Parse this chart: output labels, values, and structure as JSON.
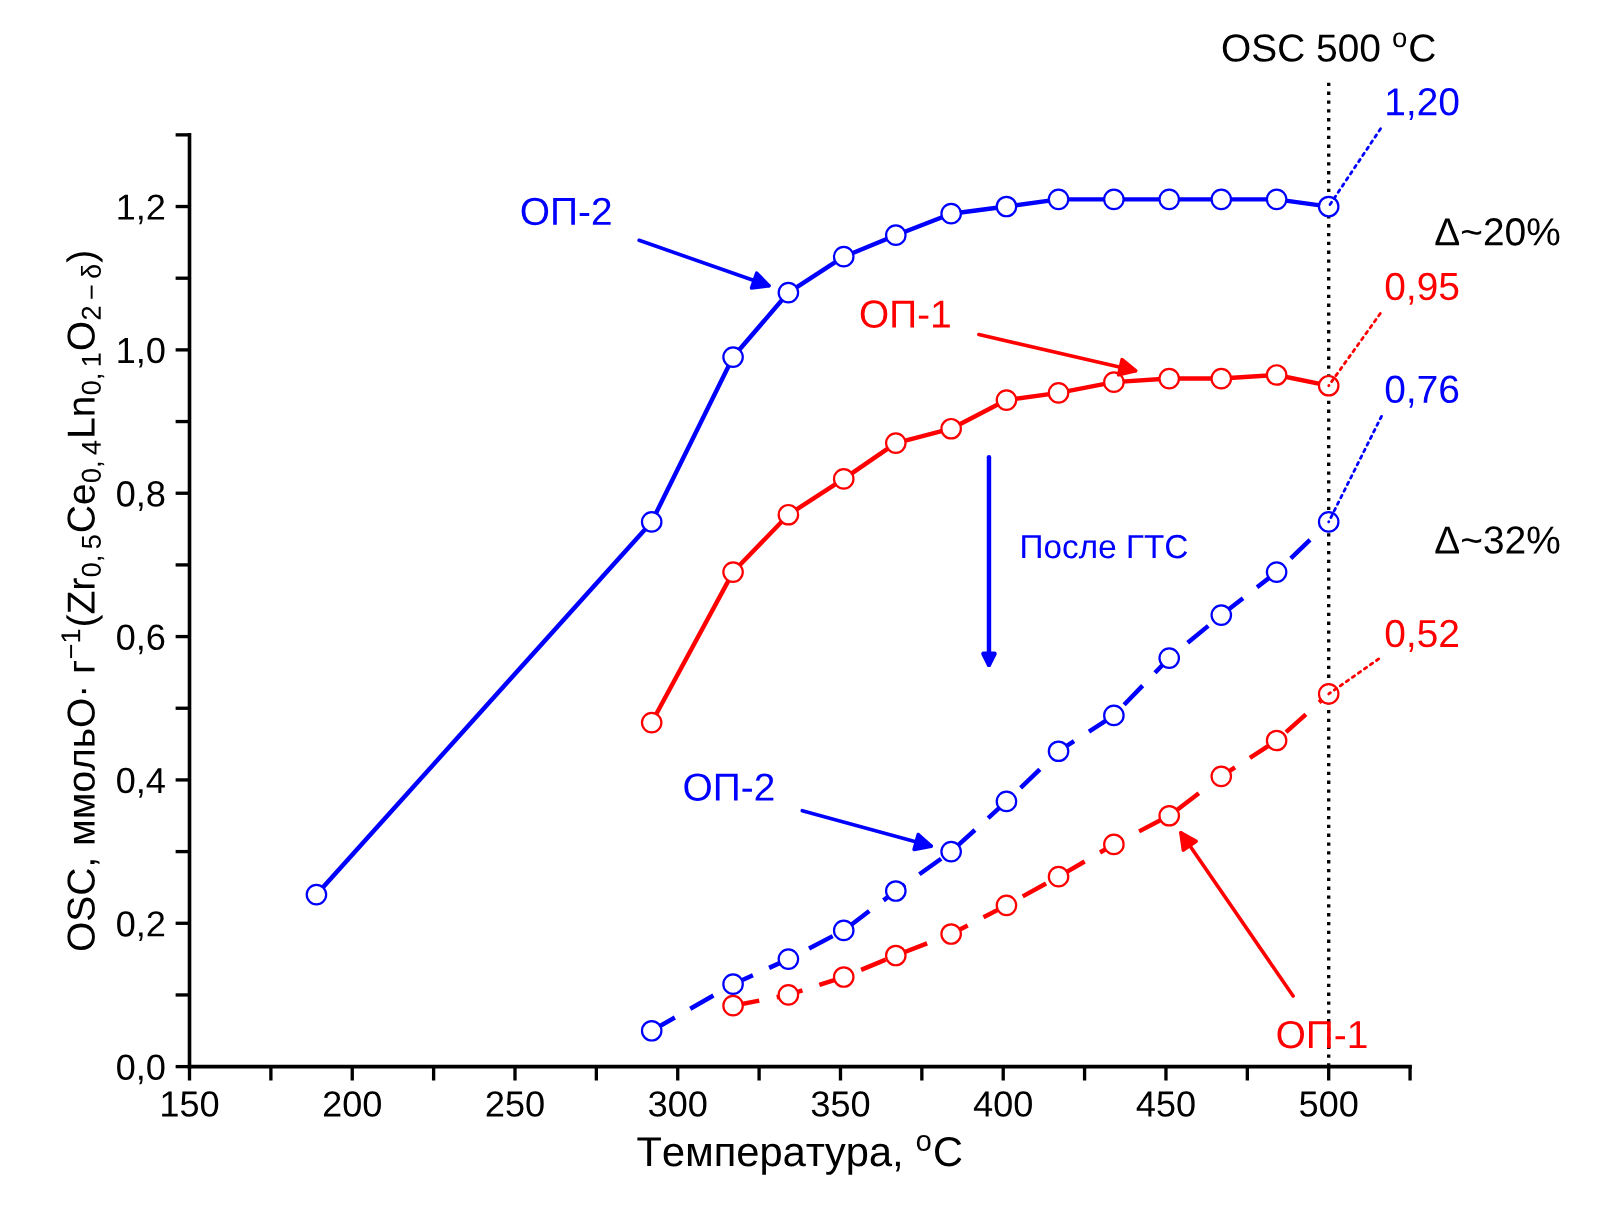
{
  "chart_data": {
    "type": "line",
    "xlabel": "Температура, $^{o}$C",
    "ylabel": "OSC, ммольO· г$^{−1}$(Zr$_{0,5}$Ce$_{0,4}$Ln$_{0,1}$O$_{2−δ}$)",
    "xlim": [
      150,
      525
    ],
    "ylim": [
      0,
      1.3
    ],
    "xticks": [
      150,
      {
        "value": 175,
        "label": null
      },
      200,
      {
        "value": 225,
        "label": null
      },
      250,
      {
        "value": 275,
        "label": null
      },
      300,
      {
        "value": 325,
        "label": null
      },
      350,
      {
        "value": 375,
        "label": null
      },
      400,
      {
        "value": 425,
        "label": null
      },
      450,
      {
        "value": 475,
        "label": null
      },
      500,
      {
        "value": 525,
        "label": null
      }
    ],
    "yticks": [
      {
        "value": 0,
        "label": "0,0"
      },
      {
        "value": 0.1,
        "label": null
      },
      {
        "value": 0.2,
        "label": "0,2"
      },
      {
        "value": 0.3,
        "label": null
      },
      {
        "value": 0.4,
        "label": "0,4"
      },
      {
        "value": 0.5,
        "label": null
      },
      {
        "value": 0.6,
        "label": "0,6"
      },
      {
        "value": 0.7,
        "label": null
      },
      {
        "value": 0.8,
        "label": "0,8"
      },
      {
        "value": 0.9,
        "label": null
      },
      {
        "value": 1.0,
        "label": "1,0"
      },
      {
        "value": 1.1,
        "label": null
      },
      {
        "value": 1.2,
        "label": "1,2"
      },
      {
        "value": 1.3,
        "label": null
      }
    ],
    "grid": false,
    "legend": false,
    "marker": "circle",
    "series": [
      {
        "name": "ОП-2",
        "color": "#0000ff",
        "line_style": "solid",
        "x": [
          189,
          292,
          317,
          334,
          351,
          367,
          384,
          401,
          417,
          434,
          451,
          467,
          484,
          500
        ],
        "values": [
          0.24,
          0.76,
          0.99,
          1.08,
          1.13,
          1.16,
          1.19,
          1.2,
          1.21,
          1.21,
          1.21,
          1.21,
          1.21,
          1.2
        ],
        "value_labels": [
          null,
          null,
          null,
          null,
          null,
          null,
          null,
          null,
          null,
          null,
          null,
          null,
          null,
          "1,20"
        ]
      },
      {
        "name": "ОП-1",
        "color": "#ff0000",
        "line_style": "solid",
        "x": [
          292,
          317,
          334,
          351,
          367,
          384,
          401,
          417,
          434,
          451,
          467,
          484,
          500
        ],
        "values": [
          0.48,
          0.69,
          0.77,
          0.82,
          0.87,
          0.89,
          0.93,
          0.94,
          0.955,
          0.96,
          0.96,
          0.965,
          0.95
        ],
        "value_labels": [
          null,
          null,
          null,
          null,
          null,
          null,
          null,
          null,
          null,
          null,
          null,
          null,
          "0,95"
        ]
      },
      {
        "name": "ОП-2",
        "color": "#0000ff",
        "line_style": "dashed",
        "x": [
          292,
          317,
          334,
          351,
          367,
          384,
          401,
          417,
          434,
          451,
          467,
          484,
          500
        ],
        "values": [
          0.05,
          0.115,
          0.15,
          0.19,
          0.245,
          0.3,
          0.37,
          0.44,
          0.49,
          0.57,
          0.63,
          0.69,
          0.76
        ],
        "value_labels": [
          null,
          null,
          null,
          null,
          null,
          null,
          null,
          null,
          null,
          null,
          null,
          null,
          "0,76"
        ]
      },
      {
        "name": "ОП-1",
        "color": "#ff0000",
        "line_style": "dashed",
        "x": [
          317,
          334,
          351,
          367,
          384,
          401,
          417,
          434,
          451,
          467,
          484,
          500
        ],
        "values": [
          0.085,
          0.1,
          0.125,
          0.155,
          0.185,
          0.225,
          0.265,
          0.31,
          0.35,
          0.405,
          0.455,
          0.52
        ],
        "value_labels": [
          null,
          null,
          null,
          null,
          null,
          null,
          null,
          null,
          null,
          null,
          null,
          "0,52"
        ]
      }
    ],
    "ref_lines": [
      {
        "axis": "x",
        "value": 500,
        "label": "OSC 500 $^{o}$C",
        "color": "#000000",
        "line_style": "dotted"
      }
    ],
    "annotations": [
      "После ГТС",
      {
        "text": "Δ~20%",
        "x": 500,
        "y": 1.16
      },
      {
        "text": "Δ~32%",
        "x": 500,
        "y": 0.73
      }
    ]
  }
}
